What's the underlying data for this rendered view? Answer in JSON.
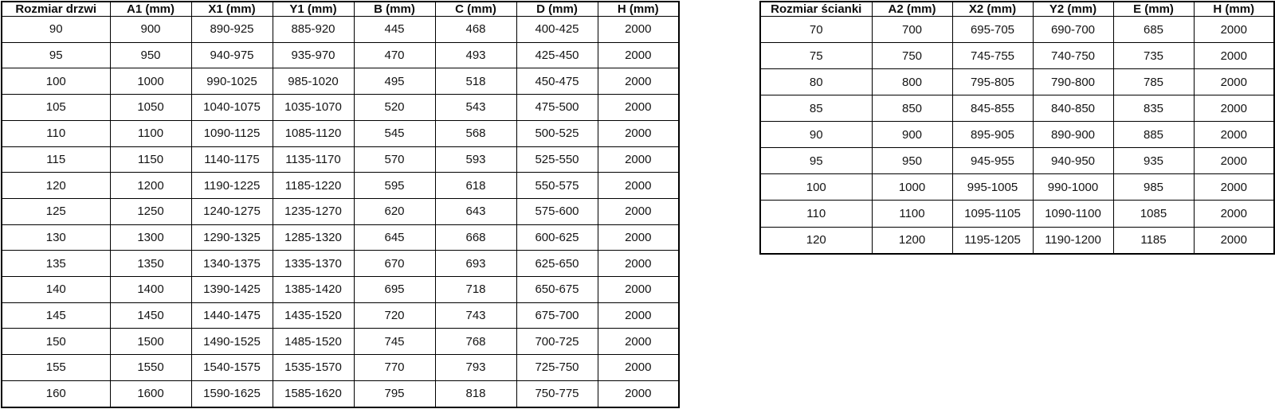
{
  "door_table": {
    "title": "Rozmiar drzwi table",
    "headers": [
      "Rozmiar drzwi",
      "A1 (mm)",
      "X1 (mm)",
      "Y1 (mm)",
      "B (mm)",
      "C (mm)",
      "D (mm)",
      "H (mm)"
    ],
    "rows": [
      [
        "90",
        "900",
        "890-925",
        "885-920",
        "445",
        "468",
        "400-425",
        "2000"
      ],
      [
        "95",
        "950",
        "940-975",
        "935-970",
        "470",
        "493",
        "425-450",
        "2000"
      ],
      [
        "100",
        "1000",
        "990-1025",
        "985-1020",
        "495",
        "518",
        "450-475",
        "2000"
      ],
      [
        "105",
        "1050",
        "1040-1075",
        "1035-1070",
        "520",
        "543",
        "475-500",
        "2000"
      ],
      [
        "110",
        "1100",
        "1090-1125",
        "1085-1120",
        "545",
        "568",
        "500-525",
        "2000"
      ],
      [
        "115",
        "1150",
        "1140-1175",
        "1135-1170",
        "570",
        "593",
        "525-550",
        "2000"
      ],
      [
        "120",
        "1200",
        "1190-1225",
        "1185-1220",
        "595",
        "618",
        "550-575",
        "2000"
      ],
      [
        "125",
        "1250",
        "1240-1275",
        "1235-1270",
        "620",
        "643",
        "575-600",
        "2000"
      ],
      [
        "130",
        "1300",
        "1290-1325",
        "1285-1320",
        "645",
        "668",
        "600-625",
        "2000"
      ],
      [
        "135",
        "1350",
        "1340-1375",
        "1335-1370",
        "670",
        "693",
        "625-650",
        "2000"
      ],
      [
        "140",
        "1400",
        "1390-1425",
        "1385-1420",
        "695",
        "718",
        "650-675",
        "2000"
      ],
      [
        "145",
        "1450",
        "1440-1475",
        "1435-1520",
        "720",
        "743",
        "675-700",
        "2000"
      ],
      [
        "150",
        "1500",
        "1490-1525",
        "1485-1520",
        "745",
        "768",
        "700-725",
        "2000"
      ],
      [
        "155",
        "1550",
        "1540-1575",
        "1535-1570",
        "770",
        "793",
        "725-750",
        "2000"
      ],
      [
        "160",
        "1600",
        "1590-1625",
        "1585-1620",
        "795",
        "818",
        "750-775",
        "2000"
      ]
    ]
  },
  "wall_table": {
    "title": "Rozmiar ścianki table",
    "headers": [
      "Rozmiar ścianki",
      "A2 (mm)",
      "X2 (mm)",
      "Y2 (mm)",
      "E (mm)",
      "H (mm)"
    ],
    "rows": [
      [
        "70",
        "700",
        "695-705",
        "690-700",
        "685",
        "2000"
      ],
      [
        "75",
        "750",
        "745-755",
        "740-750",
        "735",
        "2000"
      ],
      [
        "80",
        "800",
        "795-805",
        "790-800",
        "785",
        "2000"
      ],
      [
        "85",
        "850",
        "845-855",
        "840-850",
        "835",
        "2000"
      ],
      [
        "90",
        "900",
        "895-905",
        "890-900",
        "885",
        "2000"
      ],
      [
        "95",
        "950",
        "945-955",
        "940-950",
        "935",
        "2000"
      ],
      [
        "100",
        "1000",
        "995-1005",
        "990-1000",
        "985",
        "2000"
      ],
      [
        "110",
        "1100",
        "1095-1105",
        "1090-1100",
        "1085",
        "2000"
      ],
      [
        "120",
        "1200",
        "1195-1205",
        "1190-1200",
        "1185",
        "2000"
      ]
    ]
  },
  "colors": {
    "border": "#000000",
    "text": "#141414",
    "background": "#ffffff"
  }
}
